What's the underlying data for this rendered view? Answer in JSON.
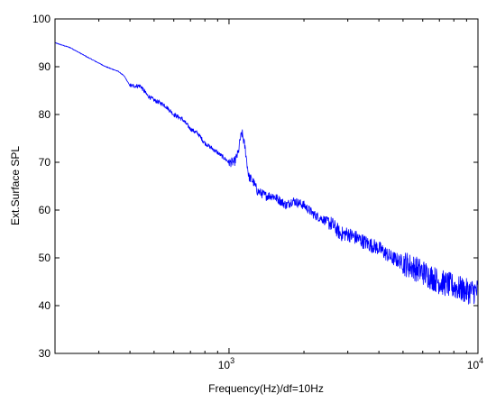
{
  "chart_data": {
    "type": "line",
    "title": "",
    "xlabel": "Frequency(Hz)/df=10Hz",
    "ylabel": "Ext.Surface SPL",
    "xscale": "log",
    "xlim": [
      200,
      10000
    ],
    "ylim": [
      30,
      100
    ],
    "yticks": [
      30,
      40,
      50,
      60,
      70,
      80,
      90,
      100
    ],
    "xticks": [
      {
        "value": 1000,
        "base": "10",
        "exp": "3"
      },
      {
        "value": 10000,
        "base": "10",
        "exp": "4"
      }
    ],
    "grid": false,
    "legend": "none",
    "line_color": "#0000ff",
    "series": [
      {
        "x": [
          200,
          230,
          270,
          320,
          360,
          380,
          400,
          440,
          470,
          500,
          550,
          600,
          650,
          700,
          750,
          800,
          850,
          900,
          950,
          1000,
          1050,
          1090,
          1110,
          1130,
          1160,
          1200,
          1250,
          1300,
          1400,
          1500,
          1600,
          1700,
          1800,
          2000,
          2200,
          2400,
          2600,
          2800,
          3000,
          3300,
          3600,
          4000,
          4500,
          5000,
          5500,
          6000,
          6500,
          7000,
          8000,
          9000,
          10000
        ],
        "y": [
          95,
          94,
          92,
          90,
          89,
          88,
          86,
          86,
          84,
          83,
          82,
          80,
          79,
          77,
          76,
          74,
          73,
          72,
          71,
          70,
          70,
          72,
          75,
          76,
          73,
          67,
          66,
          64,
          63,
          63,
          62,
          61,
          62,
          61,
          59,
          58,
          57,
          55,
          55,
          54,
          53,
          52,
          50,
          49,
          48,
          47,
          46,
          45,
          44,
          43,
          43
        ]
      }
    ]
  }
}
